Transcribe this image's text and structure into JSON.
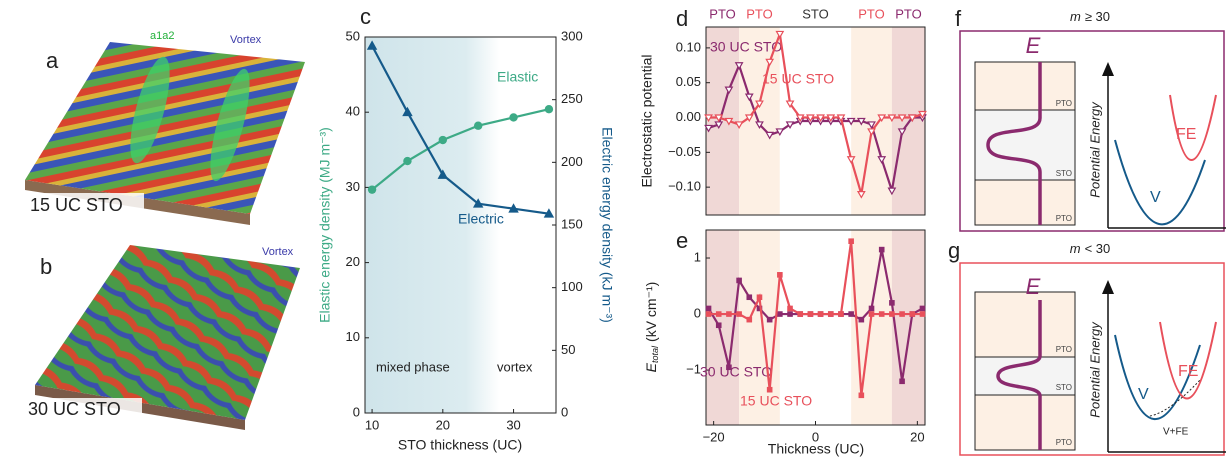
{
  "panels": {
    "a": {
      "letter": "a",
      "labels": [
        "a1a2",
        "Vortex"
      ],
      "caption": "15 UC STO"
    },
    "b": {
      "letter": "b",
      "labels": [
        "Vortex"
      ],
      "caption": "30 UC STO"
    }
  },
  "chart_data": [
    {
      "type": "line",
      "letter": "c",
      "xlabel": "STO thickness (UC)",
      "ylabel": "Elastic energy density (MJ m⁻³)",
      "y2label": "Electric energy density (kJ m⁻³)",
      "x": [
        10,
        15,
        20,
        25,
        30,
        35
      ],
      "xlim": [
        9,
        36
      ],
      "xticks": [
        10,
        20,
        30
      ],
      "ylim": [
        0,
        50
      ],
      "yticks": [
        0,
        10,
        20,
        30,
        40,
        50
      ],
      "y2lim": [
        0,
        300
      ],
      "y2ticks": [
        0,
        50,
        100,
        150,
        200,
        250,
        300
      ],
      "shaded_xlim": [
        9,
        28
      ],
      "annotations": [
        "mixed phase",
        "vortex"
      ],
      "series": [
        {
          "name": "Elastic",
          "color": "#3daa86",
          "marker": "circle",
          "values": [
            29.7,
            33.5,
            36.3,
            38.2,
            39.3,
            40.4
          ]
        },
        {
          "name": "Electric",
          "color": "#155a8a",
          "marker": "triangle",
          "axis": "y2",
          "values": [
            293,
            240,
            190,
            167,
            163,
            159
          ]
        }
      ]
    },
    {
      "type": "line",
      "letter": "d",
      "ylabel": "Electrostatic potential",
      "x": [
        -21,
        -19,
        -17,
        -15,
        -13,
        -11,
        -9,
        -7,
        -5,
        -3,
        -1,
        1,
        3,
        5,
        7,
        9,
        11,
        13,
        15,
        17,
        19,
        21
      ],
      "xlim": [
        -21.5,
        21.5
      ],
      "ylim": [
        -0.14,
        0.13
      ],
      "yticks": [
        {
          "value": -0.1,
          "label": "−0.10"
        },
        {
          "value": -0.05,
          "label": "−0.05"
        },
        {
          "value": 0,
          "label": "0.00"
        },
        {
          "value": 0.05,
          "label": "0.05"
        },
        {
          "value": 0.1,
          "label": "0.10"
        }
      ],
      "regions": [
        {
          "label": "PTO",
          "x0": -21.5,
          "x1": -15,
          "color": "#f0d8d6",
          "label_color": "#8b2a6e"
        },
        {
          "label": "PTO",
          "x0": -15,
          "x1": -7,
          "color": "#fdf0e4",
          "label_color": "#e8505b"
        },
        {
          "label": "STO",
          "x0": -7,
          "x1": 7,
          "color": "#ffffff",
          "label_color": "#333333"
        },
        {
          "label": "PTO",
          "x0": 7,
          "x1": 15,
          "color": "#fdf0e4",
          "label_color": "#e8505b"
        },
        {
          "label": "PTO",
          "x0": 15,
          "x1": 21.5,
          "color": "#f0d8d6",
          "label_color": "#8b2a6e"
        }
      ],
      "series": [
        {
          "name": "30 UC STO",
          "color": "#8b2a6e",
          "marker": "triangle-down",
          "values": [
            -0.015,
            -0.01,
            0.04,
            0.075,
            0.03,
            -0.01,
            -0.025,
            -0.02,
            -0.01,
            -0.005,
            -0.005,
            -0.005,
            -0.005,
            -0.005,
            -0.005,
            -0.005,
            -0.01,
            -0.06,
            -0.105,
            -0.02,
            0.0,
            0.0
          ]
        },
        {
          "name": "15 UC STO",
          "color": "#e8505b",
          "marker": "triangle-down",
          "values": [
            0.0,
            0.0,
            -0.005,
            -0.01,
            0.0,
            0.02,
            0.08,
            0.12,
            0.02,
            0.0,
            0.0,
            0.0,
            0.0,
            0.0,
            -0.06,
            -0.11,
            -0.02,
            0.0,
            0.0,
            0.0,
            0.0,
            0.005
          ]
        }
      ]
    },
    {
      "type": "line",
      "letter": "e",
      "xlabel": "Thickness (UC)",
      "ylabel": {
        "symbol": "E",
        "subscript": "total",
        "unit": "(kV cm⁻¹)"
      },
      "x": [
        -21,
        -19,
        -17,
        -15,
        -13,
        -11,
        -9,
        -7,
        -5,
        -3,
        -1,
        1,
        3,
        5,
        7,
        9,
        11,
        13,
        15,
        17,
        19,
        21
      ],
      "xlim": [
        -21.5,
        21.5
      ],
      "xticks": [
        {
          "value": -20,
          "label": "−20"
        },
        0,
        20
      ],
      "ylim": [
        -1.98,
        1.5
      ],
      "yticks": [
        {
          "value": -1,
          "label": "−1"
        },
        0,
        1
      ],
      "regions": [
        {
          "x0": -21.5,
          "x1": -15,
          "color": "#f0d8d6"
        },
        {
          "x0": -15,
          "x1": -7,
          "color": "#fdf0e4"
        },
        {
          "x0": 7,
          "x1": 15,
          "color": "#fdf0e4"
        },
        {
          "x0": 15,
          "x1": 21.5,
          "color": "#f0d8d6"
        }
      ],
      "series": [
        {
          "name": "30 UC STO",
          "color": "#8b2a6e",
          "marker": "square",
          "values": [
            0.1,
            -0.2,
            -0.95,
            0.6,
            0.3,
            0.1,
            -0.1,
            0.0,
            0.0,
            0.0,
            0.0,
            0.0,
            0.0,
            0.0,
            0.0,
            -0.1,
            0.1,
            1.15,
            0.2,
            -1.2,
            0.0,
            0.1
          ]
        },
        {
          "name": "15 UC STO",
          "color": "#e8505b",
          "marker": "square",
          "values": [
            0.0,
            0.0,
            0.0,
            0.0,
            -0.1,
            0.3,
            -1.35,
            0.7,
            0.1,
            0.0,
            0.0,
            0.0,
            0.0,
            0.0,
            1.3,
            -1.45,
            0.0,
            0.0,
            0.0,
            0.0,
            0.0,
            0.0
          ]
        }
      ]
    }
  ],
  "diagrams": {
    "f": {
      "letter": "f",
      "title": {
        "symbol": "m",
        "condition": "≥ 30"
      },
      "field": "E",
      "layers": [
        "PTO",
        "STO",
        "PTO"
      ],
      "ylabel": "Potential Energy",
      "curves": [
        "FE",
        "V"
      ]
    },
    "g": {
      "letter": "g",
      "title": {
        "symbol": "m",
        "condition": "< 30"
      },
      "field": "E",
      "layers": [
        "PTO",
        "STO",
        "PTO"
      ],
      "ylabel": "Potential Energy",
      "curves": [
        "FE",
        "V",
        "V+FE"
      ]
    }
  }
}
